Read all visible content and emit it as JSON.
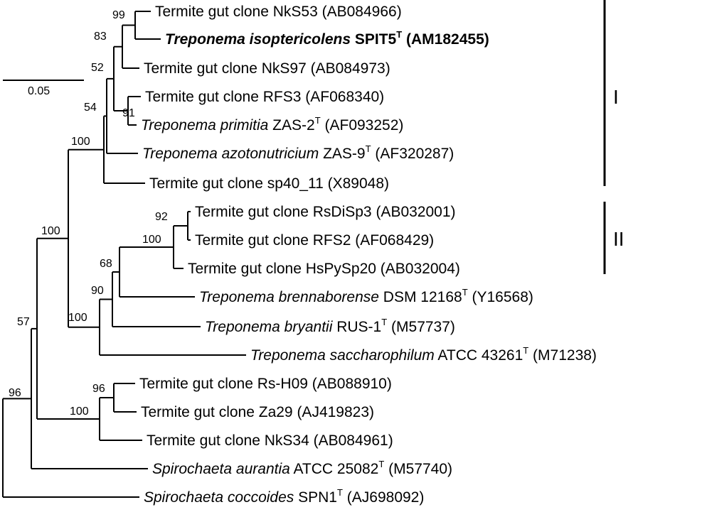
{
  "taxa": [
    {
      "id": "nks53",
      "name": "Termite gut clone NkS53",
      "italic": false,
      "type": false,
      "accession": "(AB084966)",
      "bold": false
    },
    {
      "id": "isop",
      "name": "Treponema isoptericolens",
      "italic": true,
      "strain": "SPIT5",
      "type": true,
      "accession": "(AM182455)",
      "bold": true
    },
    {
      "id": "nks97",
      "name": "Termite gut clone NkS97",
      "italic": false,
      "type": false,
      "accession": "(AB084973)",
      "bold": false
    },
    {
      "id": "rfs3",
      "name": "Termite gut clone RFS3",
      "italic": false,
      "type": false,
      "accession": "(AF068340)",
      "bold": false
    },
    {
      "id": "primitia",
      "name": "Treponema primitia",
      "italic": true,
      "strain": "ZAS-2",
      "type": true,
      "accession": "(AF093252)",
      "bold": false
    },
    {
      "id": "azoto",
      "name": "Treponema azotonutricium",
      "italic": true,
      "strain": "ZAS-9",
      "type": true,
      "accession": "(AF320287)",
      "bold": false
    },
    {
      "id": "sp40",
      "name": "Termite gut clone sp40_11",
      "italic": false,
      "type": false,
      "accession": "(X89048)",
      "bold": false
    },
    {
      "id": "rsdisp3",
      "name": "Termite gut clone RsDiSp3",
      "italic": false,
      "type": false,
      "accession": "(AB032001)",
      "bold": false
    },
    {
      "id": "rfs2",
      "name": "Termite gut clone RFS2",
      "italic": false,
      "type": false,
      "accession": "(AF068429)",
      "bold": false
    },
    {
      "id": "hspysp20",
      "name": "Termite gut clone HsPySp20",
      "italic": false,
      "type": false,
      "accession": "(AB032004)",
      "bold": false
    },
    {
      "id": "brenna",
      "name": "Treponema brennaborense",
      "italic": true,
      "strain": "DSM 12168",
      "type": true,
      "accession": "(Y16568)",
      "bold": false
    },
    {
      "id": "bryantii",
      "name": "Treponema bryantii",
      "italic": true,
      "strain": "RUS-1",
      "type": true,
      "accession": "(M57737)",
      "bold": false
    },
    {
      "id": "sacch",
      "name": "Treponema saccharophilum",
      "italic": true,
      "strain": "ATCC 43261",
      "type": true,
      "accession": "(M71238)",
      "bold": false
    },
    {
      "id": "rsh09",
      "name": "Termite gut clone Rs-H09",
      "italic": false,
      "type": false,
      "accession": "(AB088910)",
      "bold": false
    },
    {
      "id": "za29",
      "name": "Termite gut clone Za29",
      "italic": false,
      "type": false,
      "accession": "(AJ419823)",
      "bold": false
    },
    {
      "id": "nks34",
      "name": "Termite gut clone NkS34",
      "italic": false,
      "type": false,
      "accession": "(AB084961)",
      "bold": false
    },
    {
      "id": "auran",
      "name": "Spirochaeta aurantia",
      "italic": true,
      "strain": "ATCC 25082",
      "type": true,
      "accession": "(M57740)",
      "bold": false
    },
    {
      "id": "cocco",
      "name": "Spirochaeta coccoides",
      "italic": true,
      "strain": "SPN1",
      "type": true,
      "accession": "(AJ698092)",
      "bold": false
    }
  ],
  "type_superscript": "T",
  "bootstrap": [
    "99",
    "83",
    "52",
    "91",
    "54",
    "100",
    "92",
    "100",
    "68",
    "90",
    "100",
    "100",
    "96",
    "100",
    "57",
    "96"
  ],
  "clades": [
    {
      "label": "I"
    },
    {
      "label": "II"
    }
  ],
  "scale_bar": {
    "label": "0.05"
  },
  "colors": {
    "line": "#000000",
    "text": "#000000",
    "background": "#ffffff"
  }
}
